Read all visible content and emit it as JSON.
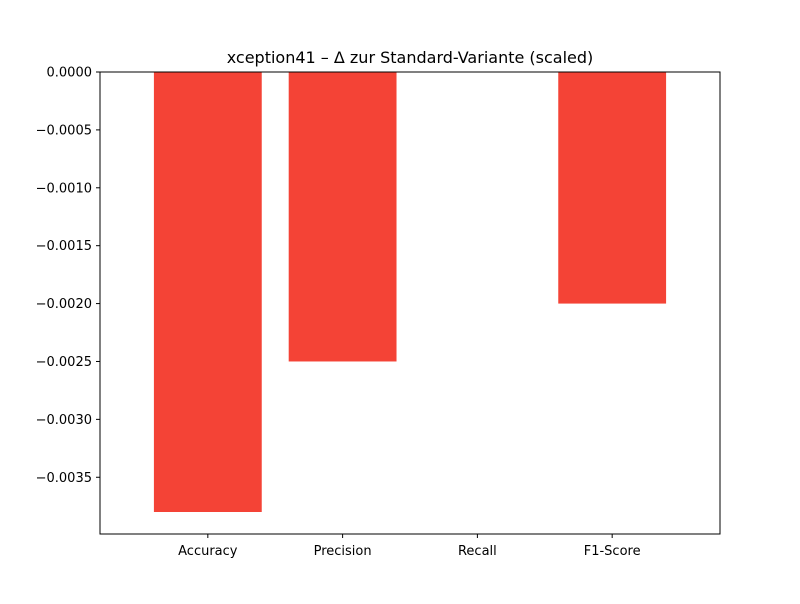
{
  "chart_data": {
    "type": "bar",
    "title": "xception41 – Δ zur Standard-Variante (scaled)",
    "xlabel": "",
    "ylabel": "",
    "categories": [
      "Accuracy",
      "Precision",
      "Recall",
      "F1-Score"
    ],
    "values": [
      -0.0038,
      -0.0025,
      0.0,
      -0.002
    ],
    "ylim": [
      -0.004,
      0.0
    ],
    "yticks": [
      0.0,
      -0.0005,
      -0.001,
      -0.0015,
      -0.002,
      -0.0025,
      -0.003,
      -0.0035
    ],
    "ytick_labels": [
      "0.0000",
      "−0.0005",
      "−0.0010",
      "−0.0015",
      "−0.0020",
      "−0.0025",
      "−0.0030",
      "−0.0035"
    ],
    "bar_color": "#f44336",
    "grid": false,
    "legend": "none"
  }
}
